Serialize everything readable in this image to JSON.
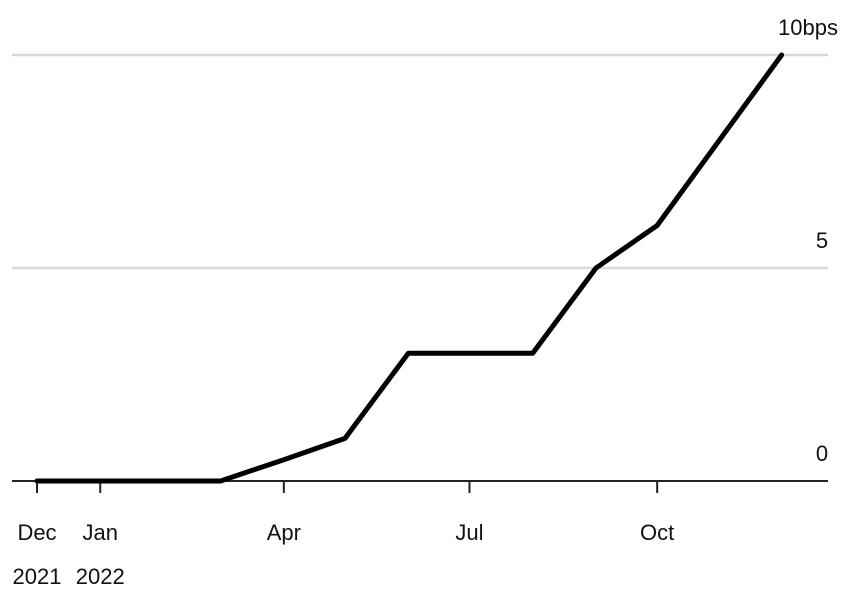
{
  "chart_data": {
    "type": "line",
    "title": "",
    "xlabel": "",
    "ylabel": "",
    "x_ticks": [
      {
        "date": "2021-12-01",
        "line1": "Dec",
        "line2": "2021"
      },
      {
        "date": "2022-01-01",
        "line1": "Jan",
        "line2": "2022"
      },
      {
        "date": "2022-04-01",
        "line1": "Apr",
        "line2": ""
      },
      {
        "date": "2022-07-01",
        "line1": "Jul",
        "line2": ""
      },
      {
        "date": "2022-10-01",
        "line1": "Oct",
        "line2": ""
      }
    ],
    "y_ticks": [
      {
        "value": 0,
        "label": "0"
      },
      {
        "value": 5,
        "label": "5"
      },
      {
        "value": 10,
        "label": "10bps"
      }
    ],
    "ylim": [
      0,
      10
    ],
    "xlim": [
      "2021-12-01",
      "2022-12-15"
    ],
    "grid": true,
    "series": [
      {
        "x": [
          "2021-12-01",
          "2022-03-01",
          "2022-04-01",
          "2022-05-01",
          "2022-06-01",
          "2022-08-01",
          "2022-09-01",
          "2022-10-01",
          "2022-12-01"
        ],
        "y": [
          0,
          0,
          0.5,
          1.0,
          3.0,
          3.0,
          5.0,
          6.0,
          10.0
        ]
      }
    ],
    "colors": {
      "line": "#000000",
      "grid": "#d9d9d9",
      "axis": "#222222",
      "text": "#111111"
    }
  }
}
